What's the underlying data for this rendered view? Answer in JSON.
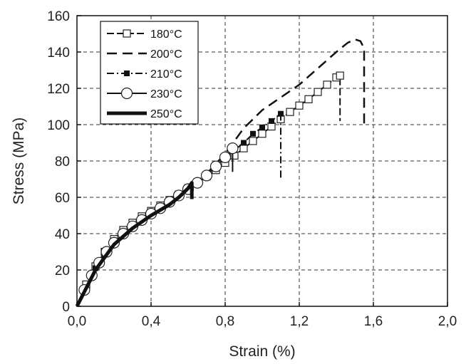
{
  "chart_data": {
    "type": "line",
    "xlabel": "Strain (%)",
    "ylabel": "Stress (MPa)",
    "xlim": [
      0,
      2.0
    ],
    "ylim": [
      0,
      160
    ],
    "x_ticks": [
      "0,0",
      "0,4",
      "0,8",
      "1,2",
      "1,6",
      "2,0"
    ],
    "y_ticks": [
      "0",
      "20",
      "40",
      "60",
      "80",
      "100",
      "120",
      "140",
      "160"
    ],
    "grid": true,
    "legend_position": "top-left",
    "series": [
      {
        "name": "180°C",
        "style": "long-dash, open squares",
        "points": [
          [
            0,
            0
          ],
          [
            0.05,
            12
          ],
          [
            0.1,
            22
          ],
          [
            0.15,
            30
          ],
          [
            0.2,
            37
          ],
          [
            0.25,
            42
          ],
          [
            0.3,
            46
          ],
          [
            0.35,
            49.5
          ],
          [
            0.4,
            52.5
          ],
          [
            0.45,
            55.5
          ],
          [
            0.5,
            58.5
          ],
          [
            0.55,
            61.5
          ],
          [
            0.6,
            65
          ],
          [
            0.65,
            68
          ],
          [
            0.7,
            71.5
          ],
          [
            0.75,
            75
          ],
          [
            0.8,
            79
          ],
          [
            0.85,
            83
          ],
          [
            0.9,
            87
          ],
          [
            0.95,
            91
          ],
          [
            1.0,
            95
          ],
          [
            1.05,
            99
          ],
          [
            1.1,
            103
          ],
          [
            1.15,
            107
          ],
          [
            1.2,
            110.5
          ],
          [
            1.25,
            114
          ],
          [
            1.3,
            118
          ],
          [
            1.35,
            122
          ],
          [
            1.4,
            126
          ],
          [
            1.42,
            127
          ],
          [
            1.42,
            102
          ]
        ]
      },
      {
        "name": "200°C",
        "style": "long-dash",
        "points": [
          [
            0,
            0
          ],
          [
            0.1,
            21
          ],
          [
            0.2,
            35
          ],
          [
            0.3,
            44
          ],
          [
            0.4,
            51
          ],
          [
            0.5,
            58
          ],
          [
            0.6,
            65
          ],
          [
            0.7,
            73
          ],
          [
            0.8,
            84
          ],
          [
            0.9,
            98
          ],
          [
            1.0,
            108
          ],
          [
            1.1,
            115
          ],
          [
            1.2,
            122
          ],
          [
            1.3,
            131
          ],
          [
            1.4,
            140
          ],
          [
            1.46,
            145
          ],
          [
            1.5,
            147
          ],
          [
            1.53,
            146
          ],
          [
            1.55,
            142
          ],
          [
            1.55,
            100
          ]
        ]
      },
      {
        "name": "210°C",
        "style": "dash-dot, filled squares",
        "points": [
          [
            0,
            0
          ],
          [
            0.1,
            21
          ],
          [
            0.2,
            35
          ],
          [
            0.3,
            44
          ],
          [
            0.4,
            51
          ],
          [
            0.5,
            57
          ],
          [
            0.6,
            64
          ],
          [
            0.7,
            72
          ],
          [
            0.8,
            82
          ],
          [
            0.85,
            86
          ],
          [
            0.9,
            90
          ],
          [
            0.95,
            95
          ],
          [
            1.0,
            98.5
          ],
          [
            1.05,
            102
          ],
          [
            1.1,
            106
          ],
          [
            1.1,
            70
          ]
        ]
      },
      {
        "name": "230°C",
        "style": "solid, open circles",
        "points": [
          [
            0,
            0
          ],
          [
            0.04,
            9
          ],
          [
            0.08,
            17
          ],
          [
            0.12,
            24
          ],
          [
            0.16,
            30
          ],
          [
            0.2,
            35
          ],
          [
            0.25,
            40
          ],
          [
            0.3,
            44
          ],
          [
            0.35,
            47.5
          ],
          [
            0.4,
            51
          ],
          [
            0.45,
            54
          ],
          [
            0.5,
            57.5
          ],
          [
            0.55,
            61
          ],
          [
            0.6,
            64.5
          ],
          [
            0.65,
            68
          ],
          [
            0.7,
            72
          ],
          [
            0.75,
            77
          ],
          [
            0.8,
            82
          ],
          [
            0.84,
            87
          ],
          [
            0.84,
            74
          ]
        ]
      },
      {
        "name": "250°C",
        "style": "thick solid",
        "points": [
          [
            0,
            0
          ],
          [
            0.1,
            20
          ],
          [
            0.2,
            34
          ],
          [
            0.3,
            43
          ],
          [
            0.4,
            50
          ],
          [
            0.5,
            56
          ],
          [
            0.55,
            60
          ],
          [
            0.6,
            65
          ],
          [
            0.62,
            68
          ],
          [
            0.62,
            59
          ]
        ]
      }
    ]
  }
}
